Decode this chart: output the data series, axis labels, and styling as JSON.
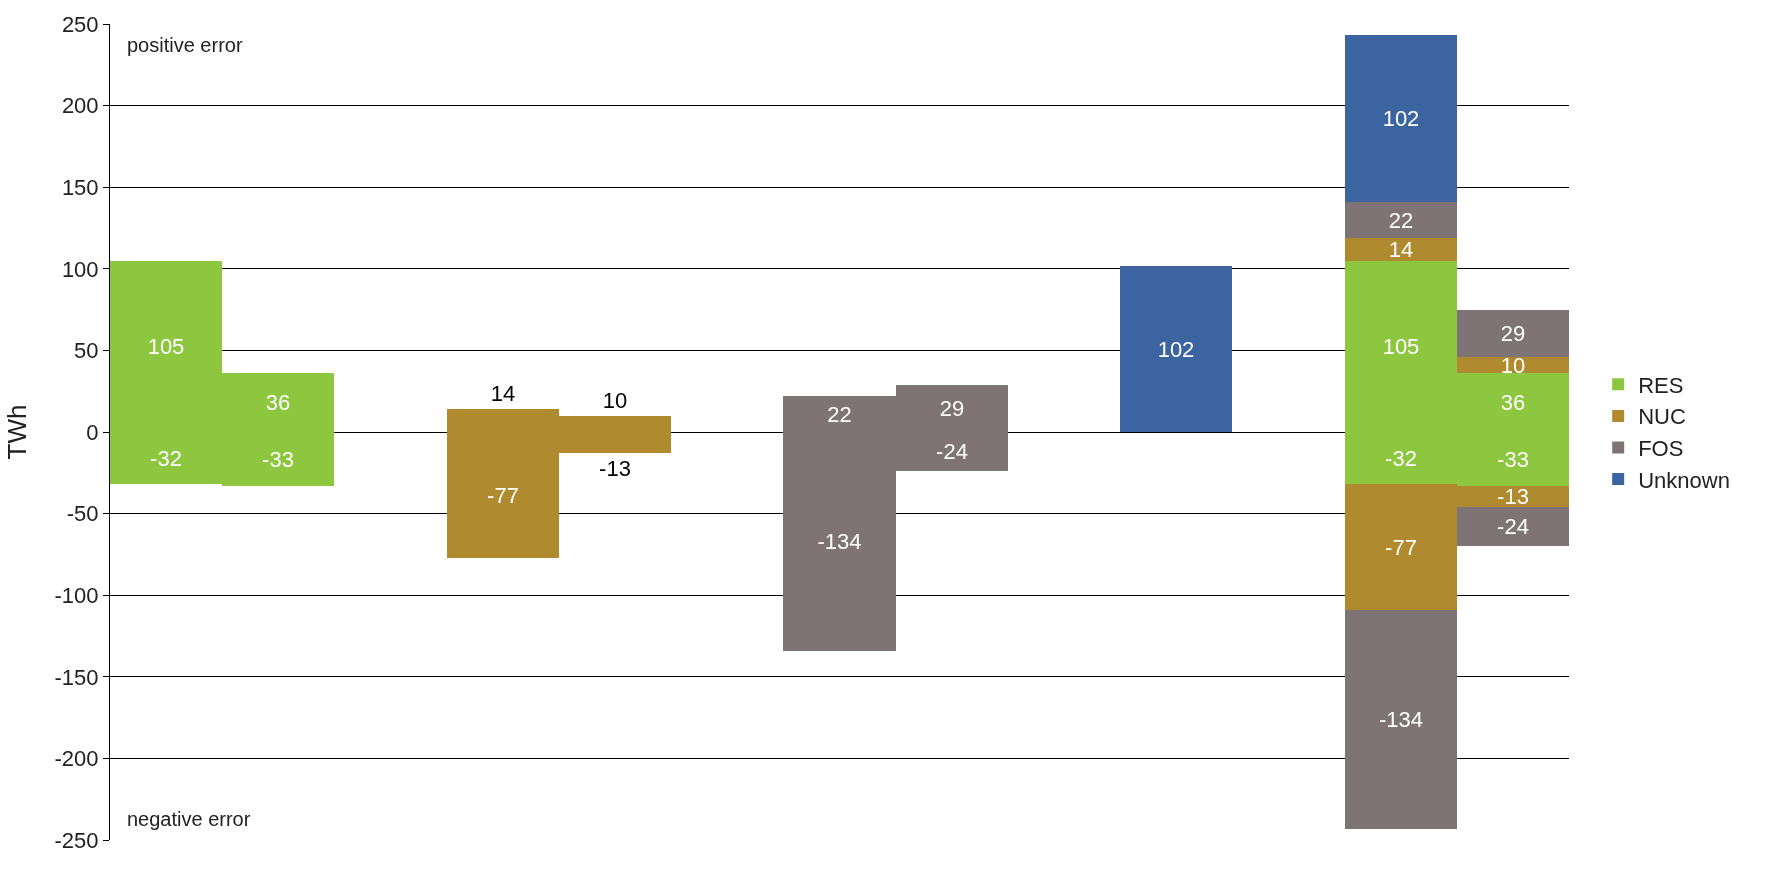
{
  "chart_data": {
    "type": "bar",
    "stacked": true,
    "ylabel": "TWh",
    "categories": [
      null,
      null,
      null,
      null,
      null,
      null,
      null,
      null,
      null,
      null,
      null,
      null,
      null
    ],
    "series": [
      {
        "name": "RES",
        "color": "#8dc63f",
        "values": [
          105,
          36,
          null,
          null,
          null,
          null,
          null,
          null,
          null,
          null,
          null,
          105,
          36
        ]
      },
      {
        "color": "#8dc63f",
        "values": [
          -32,
          -33,
          null,
          null,
          null,
          null,
          null,
          null,
          null,
          null,
          null,
          -32,
          -33
        ]
      },
      {
        "name": "NUC",
        "color": "#b08a2e",
        "values": [
          null,
          null,
          null,
          14,
          10,
          null,
          null,
          null,
          null,
          null,
          null,
          14,
          10
        ]
      },
      {
        "color": "#b08a2e",
        "values": [
          null,
          null,
          null,
          -77,
          -13,
          null,
          null,
          null,
          null,
          null,
          null,
          -77,
          -13
        ]
      },
      {
        "name": "FOS",
        "color": "#7f7475",
        "values": [
          null,
          null,
          null,
          null,
          null,
          null,
          22,
          29,
          null,
          null,
          null,
          22,
          29
        ]
      },
      {
        "color": "#7f7475",
        "values": [
          null,
          null,
          null,
          null,
          null,
          null,
          -134,
          -24,
          null,
          null,
          null,
          -134,
          -24
        ]
      },
      {
        "name": "Unknown",
        "color": "#3b64a0",
        "values": [
          null,
          null,
          null,
          null,
          null,
          null,
          null,
          null,
          null,
          102,
          null,
          102,
          null
        ]
      }
    ],
    "ylim": [
      -250,
      250
    ],
    "yticks": [
      -250,
      -200,
      -150,
      -100,
      -50,
      0,
      50,
      100,
      150,
      200,
      250
    ],
    "grid": "y",
    "legend": "right",
    "data_labels": true,
    "annotations": [
      "positive error",
      "negative error"
    ]
  }
}
